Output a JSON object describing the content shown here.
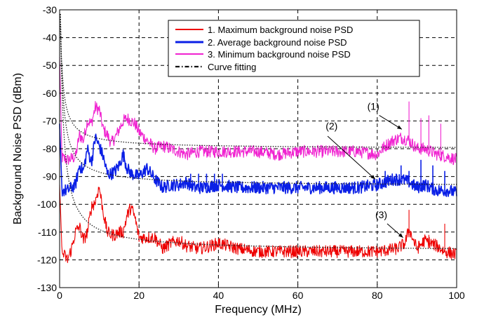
{
  "chart_data": {
    "type": "line",
    "title": "",
    "xlabel": "Frequency (MHz)",
    "ylabel": "Background Noise PSD (dBm)",
    "xlim": [
      0,
      100
    ],
    "ylim": [
      -130,
      -30
    ],
    "xticks": [
      0,
      20,
      40,
      60,
      80,
      100
    ],
    "yticks": [
      -30,
      -40,
      -50,
      -60,
      -70,
      -80,
      -90,
      -100,
      -110,
      -120,
      -130
    ],
    "grid": true,
    "legend_position": "top-right",
    "series": [
      {
        "name": "1. Maximum background noise PSD",
        "color": "#ee0000",
        "style": "noisy-line",
        "points": [
          [
            0,
            -117
          ],
          [
            1,
            -118
          ],
          [
            2,
            -120
          ],
          [
            3,
            -116
          ],
          [
            4,
            -110
          ],
          [
            5,
            -108
          ],
          [
            6,
            -113
          ],
          [
            7,
            -110
          ],
          [
            8,
            -101
          ],
          [
            9,
            -99
          ],
          [
            9.5,
            -96
          ],
          [
            10,
            -94
          ],
          [
            11,
            -103
          ],
          [
            12,
            -110
          ],
          [
            13,
            -111
          ],
          [
            14,
            -111
          ],
          [
            15,
            -110
          ],
          [
            16,
            -110
          ],
          [
            17,
            -104
          ],
          [
            18,
            -101
          ],
          [
            19,
            -105
          ],
          [
            20,
            -112
          ],
          [
            22,
            -112
          ],
          [
            24,
            -112
          ],
          [
            26,
            -116
          ],
          [
            28,
            -114
          ],
          [
            30,
            -113
          ],
          [
            32,
            -115
          ],
          [
            35,
            -116
          ],
          [
            38,
            -115
          ],
          [
            40,
            -114
          ],
          [
            45,
            -116
          ],
          [
            50,
            -117
          ],
          [
            55,
            -117
          ],
          [
            60,
            -117
          ],
          [
            65,
            -117
          ],
          [
            70,
            -117
          ],
          [
            75,
            -117
          ],
          [
            80,
            -117
          ],
          [
            85,
            -116
          ],
          [
            87,
            -114
          ],
          [
            88,
            -109
          ],
          [
            90,
            -116
          ],
          [
            92,
            -113
          ],
          [
            95,
            -115
          ],
          [
            97,
            -117
          ],
          [
            100,
            -118
          ]
        ],
        "spikes": [
          [
            88,
            -102
          ],
          [
            93,
            -111
          ],
          [
            97,
            -107
          ]
        ]
      },
      {
        "name": "2. Average background noise PSD",
        "color": "#0a1fe6",
        "style": "noisy-line",
        "points": [
          [
            0,
            -95
          ],
          [
            2,
            -95
          ],
          [
            4,
            -93
          ],
          [
            5,
            -86
          ],
          [
            6,
            -88
          ],
          [
            7,
            -80
          ],
          [
            8,
            -85
          ],
          [
            9,
            -76
          ],
          [
            10,
            -79
          ],
          [
            11,
            -83
          ],
          [
            12,
            -89
          ],
          [
            13,
            -89
          ],
          [
            14,
            -88
          ],
          [
            15,
            -86
          ],
          [
            16,
            -82
          ],
          [
            17,
            -87
          ],
          [
            18,
            -89
          ],
          [
            20,
            -90
          ],
          [
            22,
            -87
          ],
          [
            24,
            -91
          ],
          [
            26,
            -94
          ],
          [
            28,
            -93
          ],
          [
            30,
            -93
          ],
          [
            32,
            -92
          ],
          [
            34,
            -94
          ],
          [
            36,
            -94
          ],
          [
            40,
            -93
          ],
          [
            45,
            -94
          ],
          [
            50,
            -94
          ],
          [
            55,
            -94
          ],
          [
            60,
            -94
          ],
          [
            65,
            -94
          ],
          [
            70,
            -94
          ],
          [
            75,
            -94
          ],
          [
            80,
            -93
          ],
          [
            82,
            -92
          ],
          [
            84,
            -91
          ],
          [
            86,
            -91
          ],
          [
            88,
            -92
          ],
          [
            90,
            -94
          ],
          [
            92,
            -93
          ],
          [
            95,
            -95
          ],
          [
            98,
            -95
          ],
          [
            100,
            -96
          ]
        ],
        "spikes": [
          [
            7,
            -80
          ],
          [
            9,
            -75
          ],
          [
            33,
            -89
          ],
          [
            35,
            -89
          ],
          [
            37,
            -89
          ],
          [
            39,
            -89
          ],
          [
            41,
            -89
          ],
          [
            82,
            -88
          ],
          [
            86,
            -86
          ],
          [
            88,
            -88
          ],
          [
            91,
            -84
          ],
          [
            94,
            -86
          ],
          [
            97,
            -88
          ]
        ]
      },
      {
        "name": "3. Minimum background noise PSD",
        "color": "#f022d0",
        "style": "noisy-line",
        "points": [
          [
            0,
            -83
          ],
          [
            2,
            -84
          ],
          [
            4,
            -83
          ],
          [
            5,
            -75
          ],
          [
            6,
            -77
          ],
          [
            7,
            -70
          ],
          [
            8,
            -71
          ],
          [
            9,
            -65
          ],
          [
            10,
            -66
          ],
          [
            11,
            -73
          ],
          [
            12,
            -75
          ],
          [
            13,
            -78
          ],
          [
            14,
            -76
          ],
          [
            15,
            -73
          ],
          [
            16,
            -70
          ],
          [
            17,
            -69
          ],
          [
            18,
            -70
          ],
          [
            19,
            -71
          ],
          [
            20,
            -74
          ],
          [
            22,
            -77
          ],
          [
            24,
            -80
          ],
          [
            26,
            -79
          ],
          [
            28,
            -80
          ],
          [
            30,
            -81
          ],
          [
            32,
            -82
          ],
          [
            35,
            -81
          ],
          [
            40,
            -81
          ],
          [
            45,
            -81
          ],
          [
            50,
            -81
          ],
          [
            55,
            -82
          ],
          [
            60,
            -81
          ],
          [
            65,
            -81
          ],
          [
            70,
            -81
          ],
          [
            75,
            -81
          ],
          [
            80,
            -82
          ],
          [
            82,
            -79
          ],
          [
            84,
            -77
          ],
          [
            86,
            -76
          ],
          [
            88,
            -77
          ],
          [
            90,
            -80
          ],
          [
            92,
            -80
          ],
          [
            95,
            -82
          ],
          [
            98,
            -83
          ],
          [
            100,
            -84
          ]
        ],
        "spikes": [
          [
            88,
            -63
          ],
          [
            91,
            -69
          ],
          [
            93,
            -68
          ],
          [
            96,
            -71
          ]
        ]
      },
      {
        "name": "Curve fitting",
        "color": "#222222",
        "style": "dotted",
        "curves": [
          {
            "a": -80.0,
            "b": 30.0,
            "c": 0.45,
            "d": -0.12
          },
          {
            "a": -93.5,
            "b": 42.0,
            "c": 0.45,
            "d": -0.075
          },
          {
            "a": -117.0,
            "b": 66.0,
            "c": 0.55,
            "d": -0.05
          }
        ]
      }
    ],
    "annotations": [
      {
        "text": "(1)",
        "text_at": [
          77.5,
          -66
        ],
        "arrow_from": [
          80.5,
          -68
        ],
        "arrow_to": [
          86.2,
          -73
        ]
      },
      {
        "text": "(2)",
        "text_at": [
          67,
          -73
        ],
        "arrow_from": [
          67.5,
          -75.5
        ],
        "arrow_to": [
          79.5,
          -91
        ]
      },
      {
        "text": "(3)",
        "text_at": [
          79.5,
          -105
        ],
        "arrow_from": [
          82.5,
          -107
        ],
        "arrow_to": [
          86.5,
          -112
        ]
      }
    ]
  }
}
